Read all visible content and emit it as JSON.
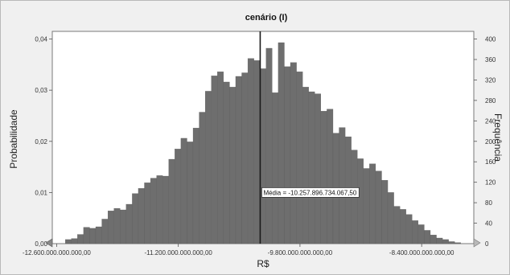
{
  "chart_data": {
    "type": "bar",
    "title": "cenário (I)",
    "xlabel": "R$",
    "ylabel_left": "Probabilidade",
    "ylabel_right": "Frequência",
    "x_tick_labels": [
      "-12.600.000.000.000,00",
      "-11.200.000.000.000,00",
      "-9.800.000.000.000,00",
      "-8.400.000.000.000,00"
    ],
    "x_tick_values": [
      -12600000000000,
      -11200000000000,
      -9800000000000,
      -8400000000000
    ],
    "xlim": [
      -12650000000000,
      -7800000000000
    ],
    "ylim_left": [
      0,
      0.0415
    ],
    "ylim_right": [
      0,
      415
    ],
    "y_left_tick_labels": [
      "0,00",
      "0,01",
      "0,02",
      "0,03",
      "0,04"
    ],
    "y_left_tick_values": [
      0,
      0.01,
      0.02,
      0.03,
      0.04
    ],
    "y_right_tick_labels": [
      "0",
      "40",
      "80",
      "120",
      "160",
      "200",
      "240",
      "280",
      "320",
      "360",
      "400"
    ],
    "y_right_tick_values": [
      0,
      40,
      80,
      120,
      160,
      200,
      240,
      280,
      320,
      360,
      400
    ],
    "bin_start": -12500000000000,
    "bin_width": 70000000000,
    "frequencies": [
      8,
      10,
      18,
      32,
      30,
      33,
      48,
      64,
      69,
      66,
      77,
      98,
      108,
      119,
      128,
      133,
      132,
      165,
      185,
      206,
      199,
      226,
      257,
      298,
      328,
      336,
      316,
      306,
      327,
      334,
      362,
      358,
      342,
      382,
      295,
      393,
      346,
      354,
      336,
      306,
      297,
      293,
      259,
      263,
      216,
      227,
      209,
      183,
      166,
      147,
      156,
      142,
      124,
      100,
      73,
      67,
      57,
      45,
      37,
      26,
      17,
      11,
      8,
      4,
      2
    ],
    "mean": {
      "label": "Média = -10.257.896.734.067,50",
      "value": -10257896734067.5
    },
    "colors": {
      "bar": "#6e6e6e",
      "bar_edge": "#5a5a5a",
      "plot_background": "#ffffff",
      "frame_background": "#f0f0f0",
      "mean_line": "#1a1a1a"
    },
    "grid": false,
    "legend": "none"
  }
}
